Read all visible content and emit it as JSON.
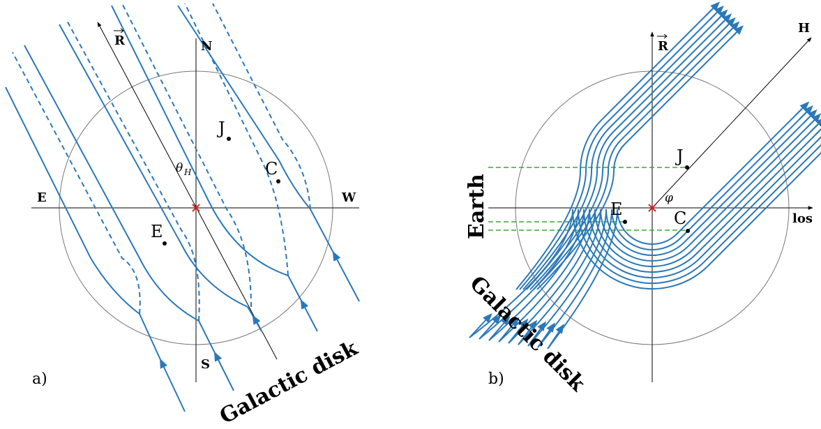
{
  "panels": [
    {
      "label": "a)",
      "axes": {
        "vector": "R",
        "north": "N",
        "south": "S",
        "east": "E",
        "west": "W"
      },
      "points": [
        {
          "label": "J"
        },
        {
          "label": "C"
        },
        {
          "label": "E"
        }
      ],
      "angle": {
        "symbol": "θ",
        "subscript": "H"
      },
      "disk_label": "Galactic disk"
    },
    {
      "label": "b)",
      "axes": {
        "vector": "R",
        "h": "H",
        "los": "los"
      },
      "points": [
        {
          "label": "J"
        },
        {
          "label": "C"
        },
        {
          "label": "E"
        }
      ],
      "angle": {
        "symbol": "φ"
      },
      "earth_label": "Earth",
      "disk_label": "Galactic disk"
    }
  ]
}
